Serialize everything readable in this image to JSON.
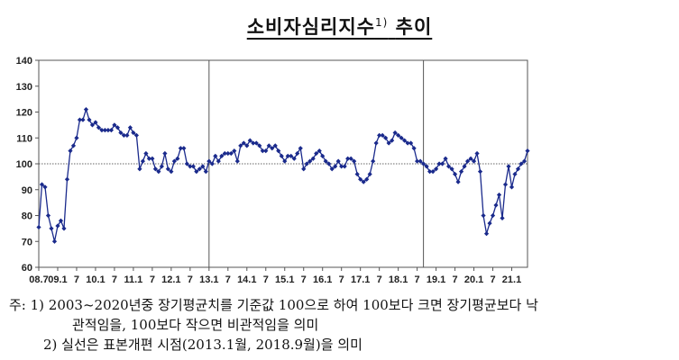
{
  "header": {
    "title": "소비자심리지수",
    "title_sup": "1)",
    "title_tail": "추이"
  },
  "notes": {
    "line1": "주: 1) 2003~2020년중 장기평균치를 기준값 100으로 하여 100보다 크면 장기평균보다 낙",
    "line2": "관적임을, 100보다 작으면 비관적임을 의미",
    "line3": "2) 실선은 표본개편 시점(2013.1월, 2018.9월)을 의미"
  },
  "colors": {
    "series": "#1a2a8c",
    "frame": "#555555",
    "reference": "#333333"
  },
  "chart_data": {
    "type": "line",
    "title": "소비자심리지수 추이",
    "xlabel": "",
    "ylabel": "",
    "ylim": [
      60,
      140
    ],
    "yticks": [
      60,
      70,
      80,
      90,
      100,
      110,
      120,
      130,
      140
    ],
    "grid": false,
    "reference_line": 100,
    "sample_revision_markers": [
      "2013.1",
      "2018.9"
    ],
    "x_start": "2008.7",
    "x_end": "2021.6",
    "x_tick_labels": [
      {
        "date": "2008.7",
        "label": "08.7"
      },
      {
        "date": "2009.1",
        "label": "09.1"
      },
      {
        "date": "2009.7",
        "label": "7"
      },
      {
        "date": "2010.1",
        "label": "10.1"
      },
      {
        "date": "2010.7",
        "label": "7"
      },
      {
        "date": "2011.1",
        "label": "11.1"
      },
      {
        "date": "2011.7",
        "label": "7"
      },
      {
        "date": "2012.1",
        "label": "12.1"
      },
      {
        "date": "2012.7",
        "label": "7"
      },
      {
        "date": "2013.1",
        "label": "13.1"
      },
      {
        "date": "2013.7",
        "label": "7"
      },
      {
        "date": "2014.1",
        "label": "14.1"
      },
      {
        "date": "2014.7",
        "label": "7"
      },
      {
        "date": "2015.1",
        "label": "15.1"
      },
      {
        "date": "2015.7",
        "label": "7"
      },
      {
        "date": "2016.1",
        "label": "16.1"
      },
      {
        "date": "2016.7",
        "label": "7"
      },
      {
        "date": "2017.1",
        "label": "17.1"
      },
      {
        "date": "2017.7",
        "label": "7"
      },
      {
        "date": "2018.1",
        "label": "18.1"
      },
      {
        "date": "2018.7",
        "label": "7"
      },
      {
        "date": "2019.1",
        "label": "19.1"
      },
      {
        "date": "2019.7",
        "label": "7"
      },
      {
        "date": "2020.1",
        "label": "20.1"
      },
      {
        "date": "2020.7",
        "label": "7"
      },
      {
        "date": "2021.1",
        "label": "21.1"
      }
    ],
    "series": [
      {
        "values": [
          75.5,
          92,
          91,
          80,
          75,
          70,
          76,
          78,
          75,
          94,
          105,
          107,
          110,
          117,
          117,
          121,
          117,
          115,
          116,
          114,
          113,
          113,
          113,
          113,
          115,
          114,
          112,
          111,
          111,
          114,
          112,
          111,
          98,
          101,
          104,
          102,
          102,
          98,
          97,
          99,
          104,
          98,
          97,
          101,
          102,
          106,
          106,
          100,
          99,
          99,
          97,
          98,
          99,
          97,
          101,
          100,
          103,
          101,
          103,
          104,
          104,
          104,
          105,
          101,
          107,
          108,
          107,
          109,
          108,
          108,
          107,
          105,
          105,
          107,
          106,
          107,
          105,
          103,
          101,
          103,
          103,
          102,
          104,
          106,
          98,
          100,
          101,
          102,
          104,
          105,
          103,
          101,
          100,
          98,
          99,
          101,
          99,
          99,
          102,
          102,
          101,
          96,
          94,
          93,
          94,
          96,
          101,
          108,
          111,
          111,
          110,
          108,
          109,
          112,
          111,
          110,
          109,
          108,
          108,
          106,
          101,
          101,
          100,
          99,
          97,
          97,
          98,
          100,
          100,
          102,
          99,
          98,
          96,
          93,
          97,
          99,
          101,
          102,
          101,
          104,
          97,
          80,
          73,
          77,
          80,
          84,
          88,
          79,
          92,
          99,
          91,
          96,
          98,
          100,
          101,
          105
        ]
      }
    ]
  }
}
